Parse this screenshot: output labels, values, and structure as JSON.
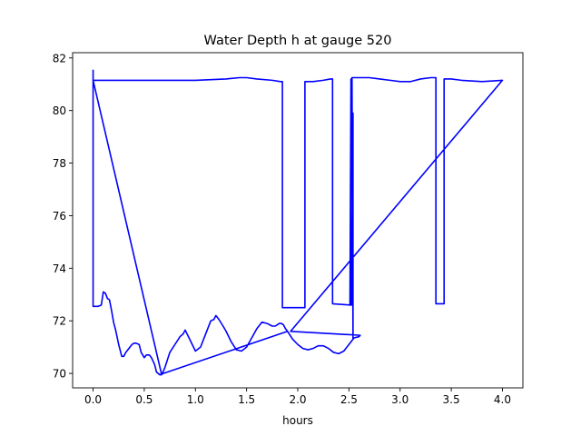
{
  "chart_data": {
    "type": "line",
    "title": "Water Depth h at gauge 520",
    "xlabel": "hours",
    "ylabel": "",
    "xlim": [
      -0.2,
      4.2
    ],
    "ylim": [
      69.45,
      82.2
    ],
    "x_ticks": [
      0.0,
      0.5,
      1.0,
      1.5,
      2.0,
      2.5,
      3.0,
      3.5,
      4.0
    ],
    "x_tick_labels": [
      "0.0",
      "0.5",
      "1.0",
      "1.5",
      "2.0",
      "2.5",
      "3.0",
      "3.5",
      "4.0"
    ],
    "y_ticks": [
      70,
      72,
      74,
      76,
      78,
      80,
      82
    ],
    "y_tick_labels": [
      "70",
      "72",
      "74",
      "76",
      "78",
      "80",
      "82"
    ],
    "grid": false,
    "line_color": "#0000ff",
    "series": [
      {
        "x": [
          0.0,
          0.0,
          0.0,
          0.0,
          0.02,
          0.05,
          0.08,
          0.1,
          0.12,
          0.14,
          0.16,
          0.18,
          0.2,
          0.22,
          0.25,
          0.28,
          0.3,
          0.32,
          0.35,
          0.38,
          0.4,
          0.42,
          0.45,
          0.47,
          0.5,
          0.52,
          0.55,
          0.57,
          0.6,
          0.62,
          0.65,
          0.67,
          0.0,
          0.67,
          0.7,
          0.75,
          0.8,
          0.85,
          0.88,
          0.9,
          0.95,
          1.0,
          1.05,
          1.1,
          1.15,
          1.18,
          1.2,
          1.23,
          1.27,
          1.3,
          1.35,
          1.4,
          1.45,
          1.5,
          1.55,
          1.6,
          1.65,
          1.7,
          1.75,
          1.78,
          1.8,
          1.82,
          1.84,
          1.86,
          1.88,
          1.9,
          0.65,
          1.9,
          1.95,
          2.0,
          2.05,
          2.1,
          2.15,
          2.2,
          2.25,
          2.3,
          2.35,
          2.4,
          2.45,
          2.5,
          2.55,
          2.6,
          2.61,
          1.93,
          4.0,
          3.8,
          3.6,
          3.5,
          3.45,
          3.44,
          3.43,
          3.43,
          3.36,
          3.35,
          3.35,
          3.3,
          3.2,
          3.1,
          3.0,
          2.9,
          2.8,
          2.7,
          2.65,
          2.6,
          2.55,
          2.53,
          2.54,
          2.54,
          2.53,
          2.52,
          2.52,
          2.51,
          2.34,
          2.34,
          2.32,
          2.25,
          2.15,
          2.08,
          2.07,
          2.07,
          1.85,
          1.85,
          1.83,
          1.75,
          1.6,
          1.5,
          1.43,
          1.3,
          1.0,
          0.5,
          0.0,
          0.0
        ],
        "y": [
          81.55,
          72.55,
          72.55,
          72.55,
          72.55,
          72.55,
          72.6,
          73.1,
          73.05,
          72.85,
          72.8,
          72.4,
          71.95,
          71.65,
          71.1,
          70.65,
          70.65,
          70.8,
          70.95,
          71.1,
          71.15,
          71.15,
          71.1,
          70.8,
          70.6,
          70.7,
          70.7,
          70.6,
          70.35,
          70.05,
          69.95,
          69.95,
          81.15,
          69.95,
          70.2,
          70.8,
          71.1,
          71.4,
          71.5,
          71.65,
          71.25,
          70.85,
          71.0,
          71.5,
          72.0,
          72.05,
          72.2,
          72.05,
          71.8,
          71.6,
          71.2,
          70.9,
          70.85,
          71.0,
          71.35,
          71.7,
          71.95,
          71.9,
          71.8,
          71.8,
          71.85,
          71.9,
          71.9,
          71.85,
          71.7,
          71.6,
          69.95,
          71.6,
          71.3,
          71.1,
          70.95,
          70.9,
          70.95,
          71.05,
          71.05,
          70.95,
          70.8,
          70.75,
          70.85,
          71.1,
          71.35,
          71.4,
          71.45,
          71.6,
          81.15,
          81.1,
          81.15,
          81.2,
          81.2,
          81.2,
          81.2,
          72.65,
          72.65,
          72.65,
          81.25,
          81.25,
          81.2,
          81.1,
          81.1,
          81.15,
          81.2,
          81.25,
          81.25,
          81.25,
          81.25,
          81.25,
          71.3,
          79.9,
          72.6,
          72.6,
          81.2,
          72.6,
          72.65,
          81.2,
          81.2,
          81.15,
          81.1,
          81.1,
          81.1,
          72.5,
          72.5,
          81.1,
          81.1,
          81.15,
          81.2,
          81.25,
          81.25,
          81.2,
          81.15,
          81.15,
          81.15,
          81.15
        ]
      }
    ]
  }
}
